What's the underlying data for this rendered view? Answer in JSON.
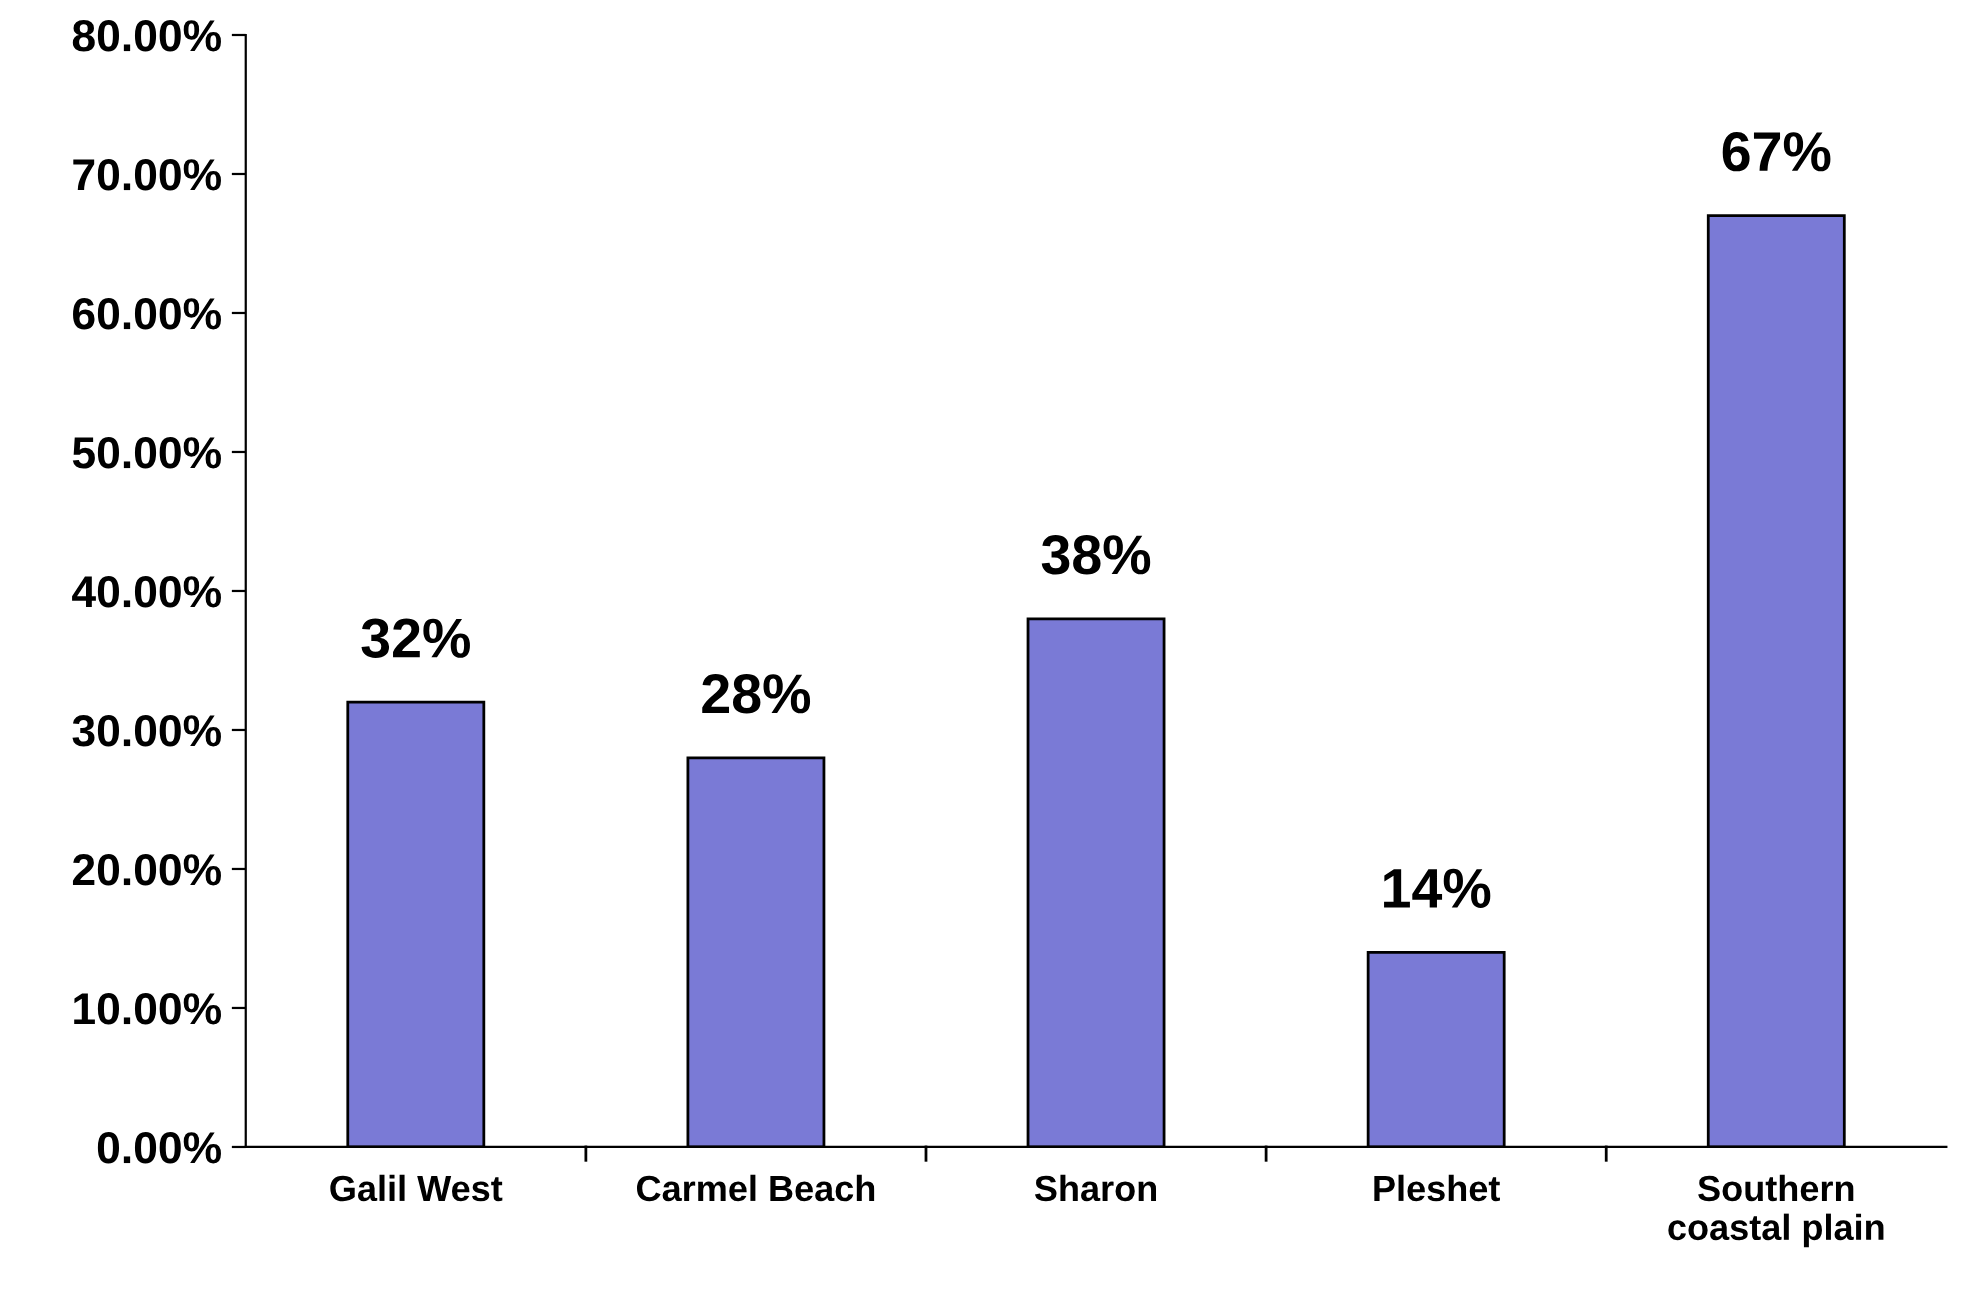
{
  "chart_data": {
    "type": "bar",
    "categories": [
      "Galil West",
      "Carmel Beach",
      "Sharon",
      "Pleshet",
      "Southern\ncoastal plain"
    ],
    "values": [
      32,
      28,
      38,
      14,
      67
    ],
    "value_labels": [
      "32%",
      "28%",
      "38%",
      "14%",
      "67%"
    ],
    "color": "#7a7ad6",
    "ylim": [
      0,
      80
    ],
    "yticks": [
      {
        "value": 0,
        "label": "0.00%"
      },
      {
        "value": 10,
        "label": "10.00%"
      },
      {
        "value": 20,
        "label": "20.00%"
      },
      {
        "value": 30,
        "label": "30.00%"
      },
      {
        "value": 40,
        "label": "40.00%"
      },
      {
        "value": 50,
        "label": "50.00%"
      },
      {
        "value": 60,
        "label": "60.00%"
      },
      {
        "value": 70,
        "label": "70.00%"
      },
      {
        "value": 80,
        "label": "80.00%"
      }
    ],
    "grid": false,
    "legend": false
  }
}
